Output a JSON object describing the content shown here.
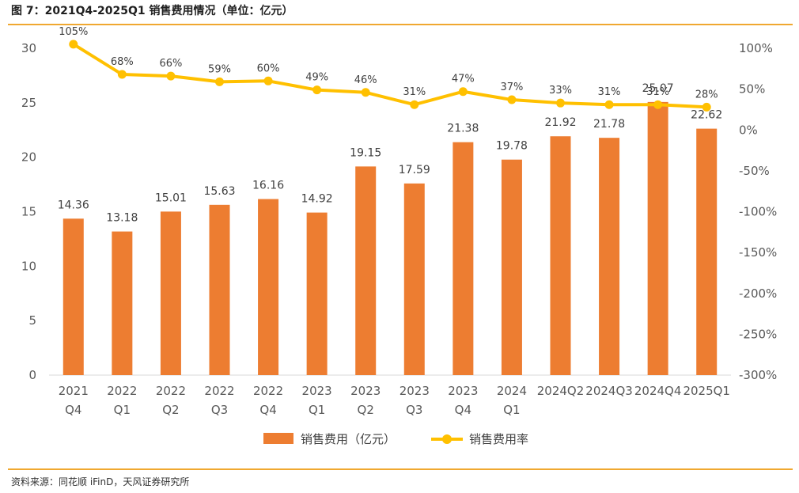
{
  "figure": {
    "title": "图 7：2021Q4-2025Q1 销售费用情况（单位：亿元）",
    "source": "资料来源：同花顺 iFinD，天风证券研究所"
  },
  "chart_data": {
    "type": "bar",
    "categories": [
      [
        "2021",
        "Q4"
      ],
      [
        "2022",
        "Q1"
      ],
      [
        "2022",
        "Q2"
      ],
      [
        "2022",
        "Q3"
      ],
      [
        "2022",
        "Q4"
      ],
      [
        "2023",
        "Q1"
      ],
      [
        "2023",
        "Q2"
      ],
      [
        "2023",
        "Q3"
      ],
      [
        "2023",
        "Q4"
      ],
      [
        "2024",
        "Q1"
      ],
      [
        "2024Q2"
      ],
      [
        "2024Q3"
      ],
      [
        "2024Q4"
      ],
      [
        "2025Q1"
      ]
    ],
    "series": [
      {
        "name": "销售费用（亿元）",
        "type": "bar",
        "axis": "left",
        "color": "#ED7D31",
        "values": [
          14.36,
          13.18,
          15.01,
          15.63,
          16.16,
          14.92,
          19.15,
          17.59,
          21.38,
          19.78,
          21.92,
          21.78,
          25.07,
          22.62
        ],
        "labels": [
          "14.36",
          "13.18",
          "15.01",
          "15.63",
          "16.16",
          "14.92",
          "19.15",
          "17.59",
          "21.38",
          "19.78",
          "21.92",
          "21.78",
          "25.07",
          "22.62"
        ]
      },
      {
        "name": "销售费用率",
        "type": "line",
        "axis": "right",
        "color": "#FFC000",
        "values": [
          105,
          68,
          66,
          59,
          60,
          49,
          46,
          31,
          47,
          37,
          33,
          31,
          31,
          28
        ],
        "labels": [
          "105%",
          "68%",
          "66%",
          "59%",
          "60%",
          "49%",
          "46%",
          "31%",
          "47%",
          "37%",
          "33%",
          "31%",
          "31%",
          "28%"
        ]
      }
    ],
    "y_left": {
      "min": 0,
      "max": 30,
      "ticks": [
        "0",
        "5",
        "10",
        "15",
        "20",
        "25",
        "30"
      ]
    },
    "y_right": {
      "min": -300,
      "max": 100,
      "ticks": [
        "-300%",
        "-250%",
        "-200%",
        "-150%",
        "-100%",
        "-50%",
        "0%",
        "50%",
        "100%"
      ]
    },
    "grid": false,
    "legend_position": "bottom"
  }
}
